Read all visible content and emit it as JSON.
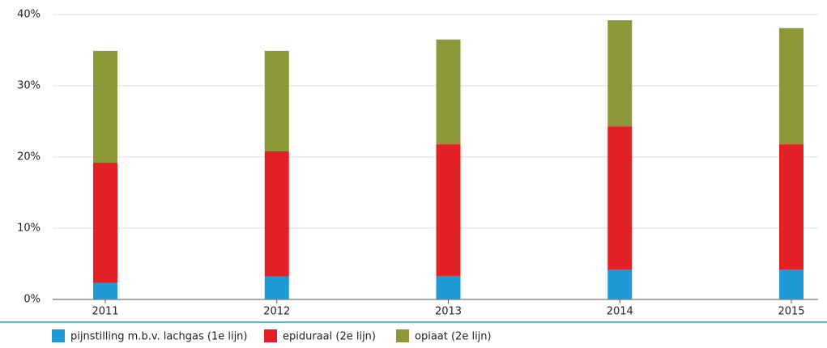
{
  "chart_data": {
    "type": "stacked-bar",
    "categories": [
      "2011",
      "2012",
      "2013",
      "2014",
      "2015"
    ],
    "series": [
      {
        "name": "pijnstilling m.b.v. lachgas (1e lijn)",
        "color": "#1f9ad6",
        "values": [
          2.3,
          3.2,
          3.3,
          4.2,
          4.2
        ]
      },
      {
        "name": "epiduraal (2e lijn)",
        "color": "#e32026",
        "values": [
          16.9,
          17.6,
          18.5,
          20.1,
          17.6
        ]
      },
      {
        "name": "opiaat (2e lijn)",
        "color": "#8d9939",
        "values": [
          15.7,
          14.1,
          14.7,
          14.9,
          16.3
        ]
      }
    ],
    "ylim": [
      0,
      40
    ],
    "yticks": [
      {
        "value": 0,
        "label": "0%"
      },
      {
        "value": 10,
        "label": "10%"
      },
      {
        "value": 20,
        "label": "20%"
      },
      {
        "value": 30,
        "label": "30%"
      },
      {
        "value": 40,
        "label": "40%"
      }
    ],
    "grid": true
  }
}
